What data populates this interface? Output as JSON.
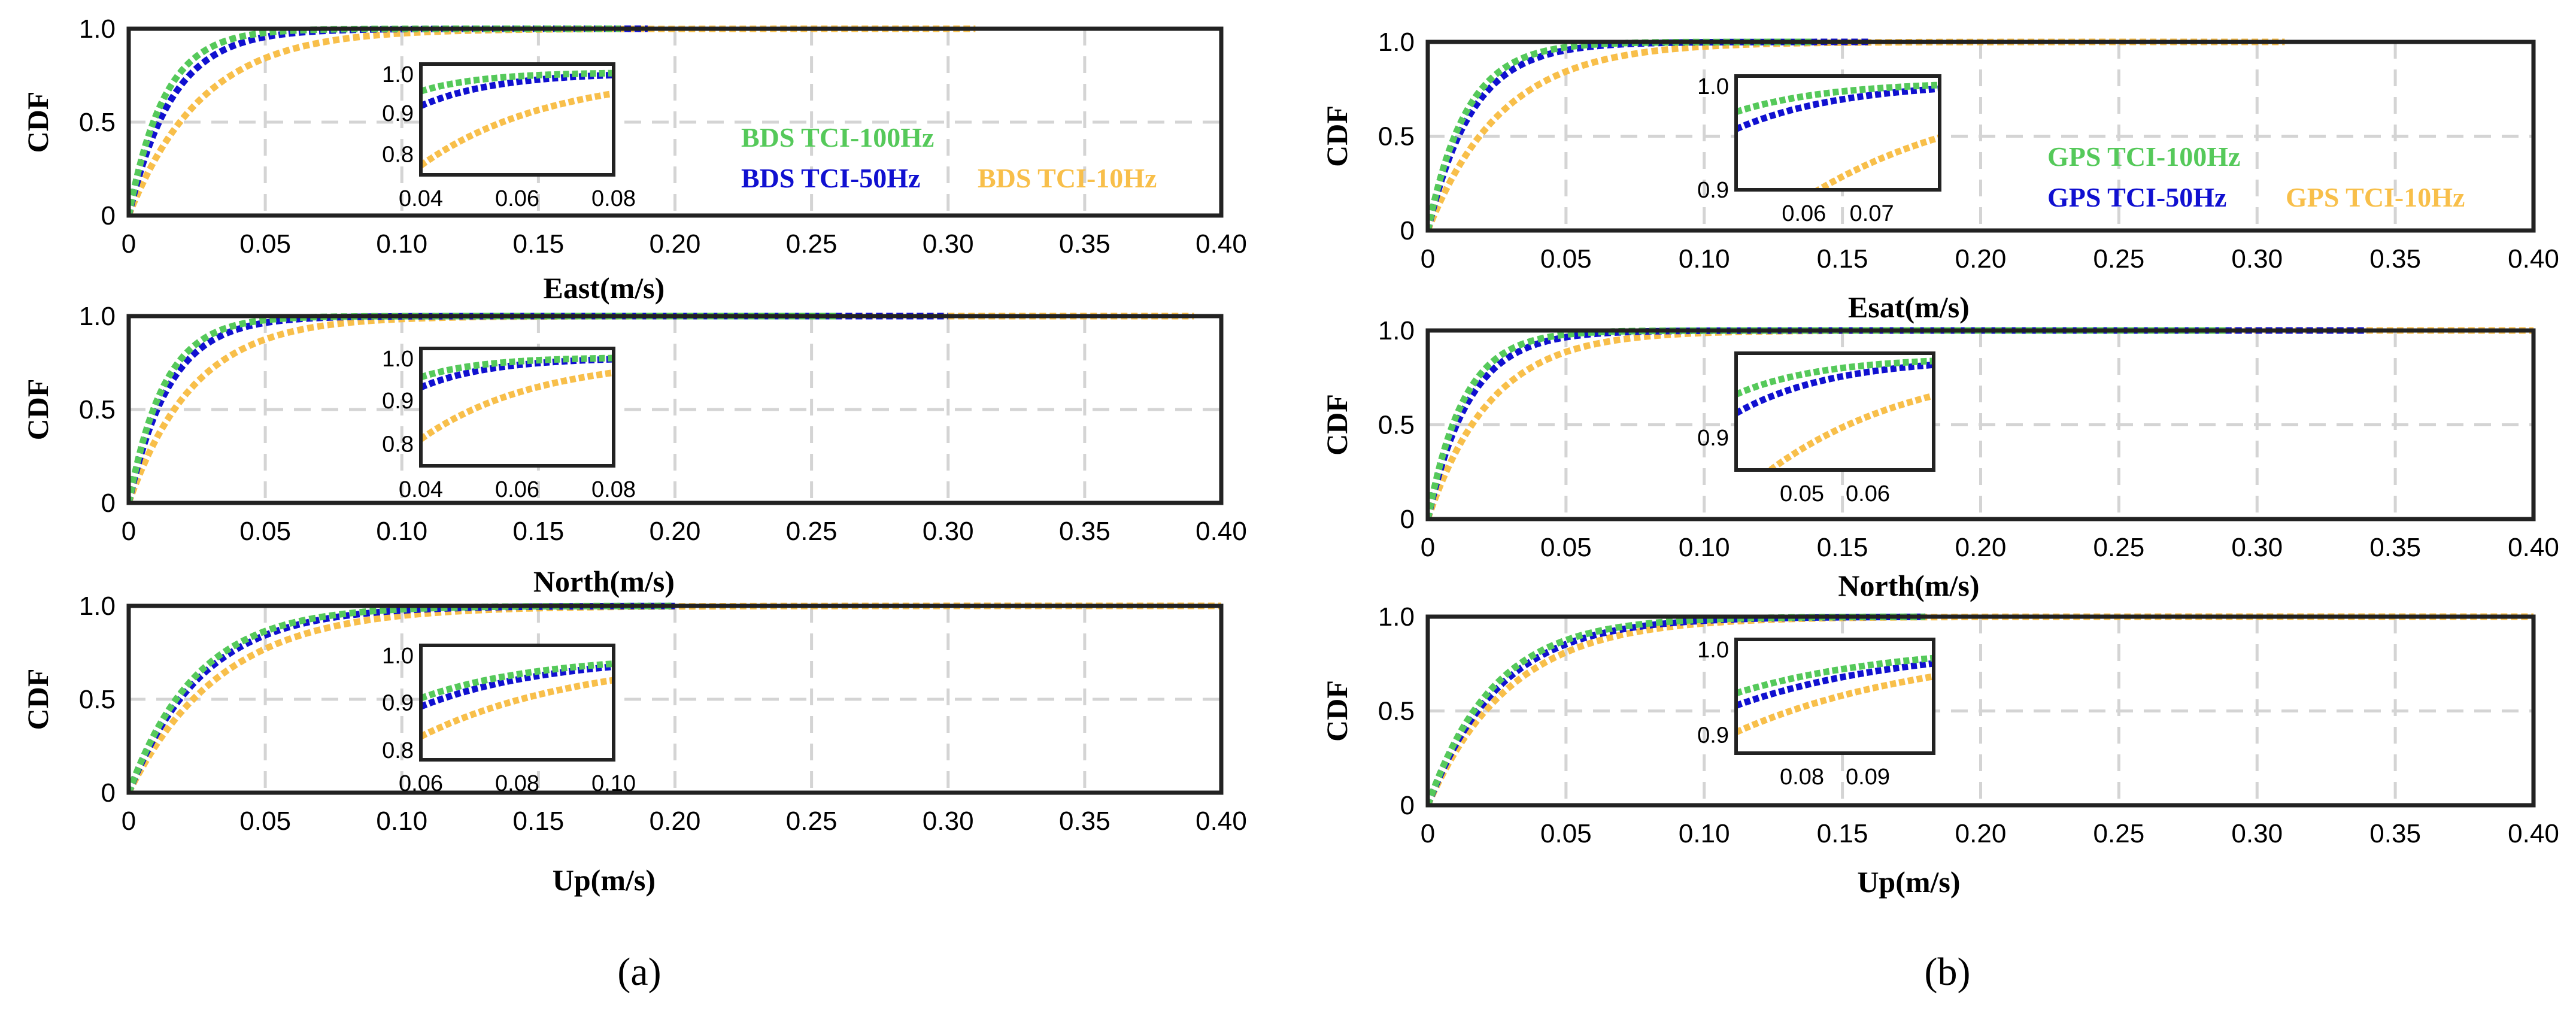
{
  "figure": {
    "panel_labels": [
      "(a)",
      "(b)"
    ]
  },
  "colors": {
    "c100": "#55c95a",
    "c50": "#1010d0",
    "c10": "#f8bf4a"
  },
  "chart_data": [
    {
      "type": "line",
      "panel": "a",
      "title": "",
      "xlabel": "East(m/s)",
      "ylabel": "CDF",
      "xlim": [
        0,
        0.4
      ],
      "ylim": [
        0,
        1.0
      ],
      "xticks": [
        "0",
        "0.05",
        "0.10",
        "0.15",
        "0.20",
        "0.25",
        "0.30",
        "0.35",
        "0.40"
      ],
      "yticks": [
        "0",
        "0.5",
        "1.0"
      ],
      "grid": true,
      "legend": [
        "BDS TCI-100Hz",
        "BDS TCI-50Hz",
        "BDS TCI-10Hz"
      ],
      "series": [
        {
          "name": "BDS TCI-100Hz",
          "scale": 0.013,
          "max": 0.18
        },
        {
          "name": "BDS TCI-50Hz",
          "scale": 0.016,
          "max": 0.19
        },
        {
          "name": "BDS TCI-10Hz",
          "scale": 0.027,
          "max": 0.31
        }
      ],
      "inset": {
        "xlim": [
          0.04,
          0.08
        ],
        "ylim": [
          0.75,
          1.02
        ],
        "xticks": [
          "0.04",
          "0.06",
          "0.08"
        ],
        "yticks": [
          "0.8",
          "0.9",
          "1.0"
        ]
      }
    },
    {
      "type": "line",
      "panel": "a",
      "title": "",
      "xlabel": "North(m/s)",
      "ylabel": "CDF",
      "xlim": [
        0,
        0.4
      ],
      "ylim": [
        0,
        1.0
      ],
      "xticks": [
        "0",
        "0.05",
        "0.10",
        "0.15",
        "0.20",
        "0.25",
        "0.30",
        "0.35",
        "0.40"
      ],
      "yticks": [
        "0",
        "0.5",
        "1.0"
      ],
      "grid": true,
      "series": [
        {
          "name": "BDS TCI-100Hz",
          "scale": 0.013,
          "max": 0.26
        },
        {
          "name": "BDS TCI-50Hz",
          "scale": 0.015,
          "max": 0.3
        },
        {
          "name": "BDS TCI-10Hz",
          "scale": 0.024,
          "max": 0.39
        }
      ],
      "inset": {
        "xlim": [
          0.04,
          0.08
        ],
        "ylim": [
          0.75,
          1.02
        ],
        "xticks": [
          "0.04",
          "0.06",
          "0.08"
        ],
        "yticks": [
          "0.8",
          "0.9",
          "1.0"
        ]
      }
    },
    {
      "type": "line",
      "panel": "a",
      "title": "",
      "xlabel": "Up(m/s)",
      "ylabel": "CDF",
      "xlim": [
        0,
        0.4
      ],
      "ylim": [
        0,
        1.0
      ],
      "xticks": [
        "0",
        "0.05",
        "0.10",
        "0.15",
        "0.20",
        "0.25",
        "0.30",
        "0.35",
        "0.40"
      ],
      "yticks": [
        "0",
        "0.5",
        "1.0"
      ],
      "grid": true,
      "series": [
        {
          "name": "BDS TCI-100Hz",
          "scale": 0.025,
          "max": 0.2
        },
        {
          "name": "BDS TCI-50Hz",
          "scale": 0.027,
          "max": 0.2
        },
        {
          "name": "BDS TCI-10Hz",
          "scale": 0.034,
          "max": 0.4
        }
      ],
      "inset": {
        "xlim": [
          0.06,
          0.1
        ],
        "ylim": [
          0.78,
          1.02
        ],
        "xticks": [
          "0.06",
          "0.08",
          "0.10"
        ],
        "yticks": [
          "0.8",
          "0.9",
          "1.0"
        ]
      }
    },
    {
      "type": "line",
      "panel": "b",
      "title": "",
      "xlabel": "Esat(m/s)",
      "ylabel": "CDF",
      "xlim": [
        0,
        0.4
      ],
      "ylim": [
        0,
        1.0
      ],
      "xticks": [
        "0",
        "0.05",
        "0.10",
        "0.15",
        "0.20",
        "0.25",
        "0.30",
        "0.35",
        "0.40"
      ],
      "yticks": [
        "0",
        "0.5",
        "1.0"
      ],
      "grid": true,
      "legend": [
        "GPS TCI-100Hz",
        "GPS TCI-50Hz",
        "GPS TCI-10Hz"
      ],
      "series": [
        {
          "name": "GPS TCI-100Hz",
          "scale": 0.014,
          "max": 0.14
        },
        {
          "name": "GPS TCI-50Hz",
          "scale": 0.016,
          "max": 0.16
        },
        {
          "name": "GPS TCI-10Hz",
          "scale": 0.027,
          "max": 0.31
        }
      ],
      "inset": {
        "xlim": [
          0.05,
          0.08
        ],
        "ylim": [
          0.9,
          1.005
        ],
        "xticks": [
          "0.06",
          "0.07"
        ],
        "yticks": [
          "0.9",
          "1.0"
        ]
      }
    },
    {
      "type": "line",
      "panel": "b",
      "title": "",
      "xlabel": "North(m/s)",
      "ylabel": "CDF",
      "xlim": [
        0,
        0.4
      ],
      "ylim": [
        0,
        1.0
      ],
      "xticks": [
        "0",
        "0.05",
        "0.10",
        "0.15",
        "0.20",
        "0.25",
        "0.30",
        "0.35",
        "0.40"
      ],
      "yticks": [
        "0",
        "0.5",
        "1.0"
      ],
      "grid": true,
      "series": [
        {
          "name": "GPS TCI-100Hz",
          "scale": 0.013,
          "max": 0.29
        },
        {
          "name": "GPS TCI-50Hz",
          "scale": 0.015,
          "max": 0.34
        },
        {
          "name": "GPS TCI-10Hz",
          "scale": 0.023,
          "max": 0.4
        }
      ],
      "inset": {
        "xlim": [
          0.04,
          0.07
        ],
        "ylim": [
          0.86,
          1.005
        ],
        "xticks": [
          "0.05",
          "0.06"
        ],
        "yticks": [
          "0.9"
        ]
      }
    },
    {
      "type": "line",
      "panel": "b",
      "title": "",
      "xlabel": "Up(m/s)",
      "ylabel": "CDF",
      "xlim": [
        0,
        0.4
      ],
      "ylim": [
        0,
        1.0
      ],
      "xticks": [
        "0",
        "0.05",
        "0.10",
        "0.15",
        "0.20",
        "0.25",
        "0.30",
        "0.35",
        "0.40"
      ],
      "yticks": [
        "0",
        "0.5",
        "1.0"
      ],
      "grid": true,
      "series": [
        {
          "name": "GPS TCI-100Hz",
          "scale": 0.024,
          "max": 0.18
        },
        {
          "name": "GPS TCI-50Hz",
          "scale": 0.026,
          "max": 0.18
        },
        {
          "name": "GPS TCI-10Hz",
          "scale": 0.03,
          "max": 0.4
        }
      ],
      "inset": {
        "xlim": [
          0.07,
          0.1
        ],
        "ylim": [
          0.88,
          1.005
        ],
        "xticks": [
          "0.08",
          "0.09"
        ],
        "yticks": [
          "0.9",
          "1.0"
        ]
      }
    }
  ]
}
